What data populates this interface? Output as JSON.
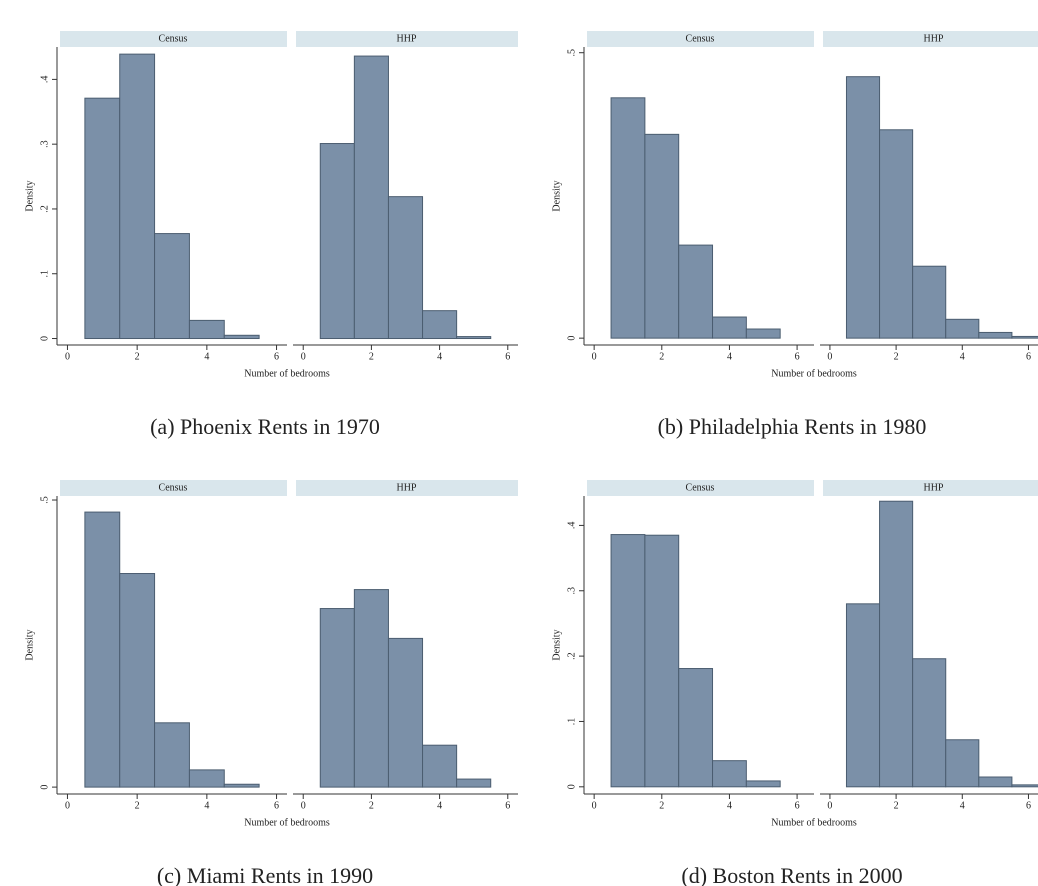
{
  "chart_data": [
    {
      "type": "histogram",
      "caption": "(a) Phoenix Rents in 1970",
      "ylabel": "Density",
      "xlabel": "Number of bedrooms",
      "ylim": [
        -0.01,
        0.45
      ],
      "yticks": [
        0,
        {
          "value": 0.1,
          "label": ".1"
        },
        {
          "value": 0.2,
          "label": ".2"
        },
        {
          "value": 0.3,
          "label": ".3"
        },
        {
          "value": 0.4,
          "label": ".4"
        }
      ],
      "xlim": [
        -0.3,
        6.3
      ],
      "xticks": [
        0,
        2,
        4,
        6
      ],
      "color": "#7b90a8",
      "panels": [
        {
          "name": "Census",
          "bins": [
            0.5,
            1.5,
            2.5,
            3.5,
            4.5,
            5.5
          ],
          "values": [
            0.371,
            0.439,
            0.162,
            0.028,
            0.005
          ]
        },
        {
          "name": "HHP",
          "bins": [
            0.5,
            1.5,
            2.5,
            3.5,
            4.5,
            5.5
          ],
          "values": [
            0.301,
            0.436,
            0.219,
            0.043,
            0.003
          ]
        }
      ]
    },
    {
      "type": "histogram",
      "caption": "(b) Philadelphia Rents in 1980",
      "ylabel": "Density",
      "xlabel": "Number of bedrooms",
      "ylim": [
        -0.012,
        0.51
      ],
      "yticks": [
        0,
        {
          "value": 0.5,
          "label": ".5"
        }
      ],
      "xlim": [
        -0.3,
        6.5
      ],
      "xticks": [
        0,
        2,
        4,
        6
      ],
      "color": "#7b90a8",
      "panels": [
        {
          "name": "Census",
          "bins": [
            0.5,
            1.5,
            2.5,
            3.5,
            4.5,
            5.5
          ],
          "values": [
            0.421,
            0.357,
            0.163,
            0.037,
            0.016
          ]
        },
        {
          "name": "HHP",
          "bins": [
            0.5,
            1.5,
            2.5,
            3.5,
            4.5,
            5.5,
            6.5
          ],
          "values": [
            0.458,
            0.365,
            0.126,
            0.033,
            0.01,
            0.003
          ]
        }
      ]
    },
    {
      "type": "histogram",
      "caption": "(c) Miami Rents in 1990",
      "ylabel": "Density",
      "xlabel": "Number of bedrooms",
      "ylim": [
        -0.012,
        0.507
      ],
      "yticks": [
        0,
        {
          "value": 0.5,
          "label": ".5"
        }
      ],
      "xlim": [
        -0.3,
        6.3
      ],
      "xticks": [
        0,
        2,
        4,
        6
      ],
      "color": "#7b90a8",
      "panels": [
        {
          "name": "Census",
          "bins": [
            0.5,
            1.5,
            2.5,
            3.5,
            4.5,
            5.5
          ],
          "values": [
            0.479,
            0.372,
            0.112,
            0.03,
            0.005
          ]
        },
        {
          "name": "HHP",
          "bins": [
            0.5,
            1.5,
            2.5,
            3.5,
            4.5,
            5.5
          ],
          "values": [
            0.311,
            0.344,
            0.259,
            0.073,
            0.014
          ]
        }
      ]
    },
    {
      "type": "histogram",
      "caption": "(d) Boston Rents in 2000",
      "ylabel": "Density",
      "xlabel": "Number of bedrooms",
      "ylim": [
        -0.011,
        0.445
      ],
      "yticks": [
        0,
        {
          "value": 0.1,
          "label": ".1"
        },
        {
          "value": 0.2,
          "label": ".2"
        },
        {
          "value": 0.3,
          "label": ".3"
        },
        {
          "value": 0.4,
          "label": ".4"
        }
      ],
      "xlim": [
        -0.3,
        6.5
      ],
      "xticks": [
        0,
        2,
        4,
        6
      ],
      "color": "#7b90a8",
      "panels": [
        {
          "name": "Census",
          "bins": [
            0.5,
            1.5,
            2.5,
            3.5,
            4.5,
            5.5
          ],
          "values": [
            0.386,
            0.385,
            0.181,
            0.04,
            0.009
          ]
        },
        {
          "name": "HHP",
          "bins": [
            0.5,
            1.5,
            2.5,
            3.5,
            4.5,
            5.5,
            6.5
          ],
          "values": [
            0.28,
            0.437,
            0.196,
            0.072,
            0.015,
            0.003
          ]
        }
      ]
    }
  ]
}
